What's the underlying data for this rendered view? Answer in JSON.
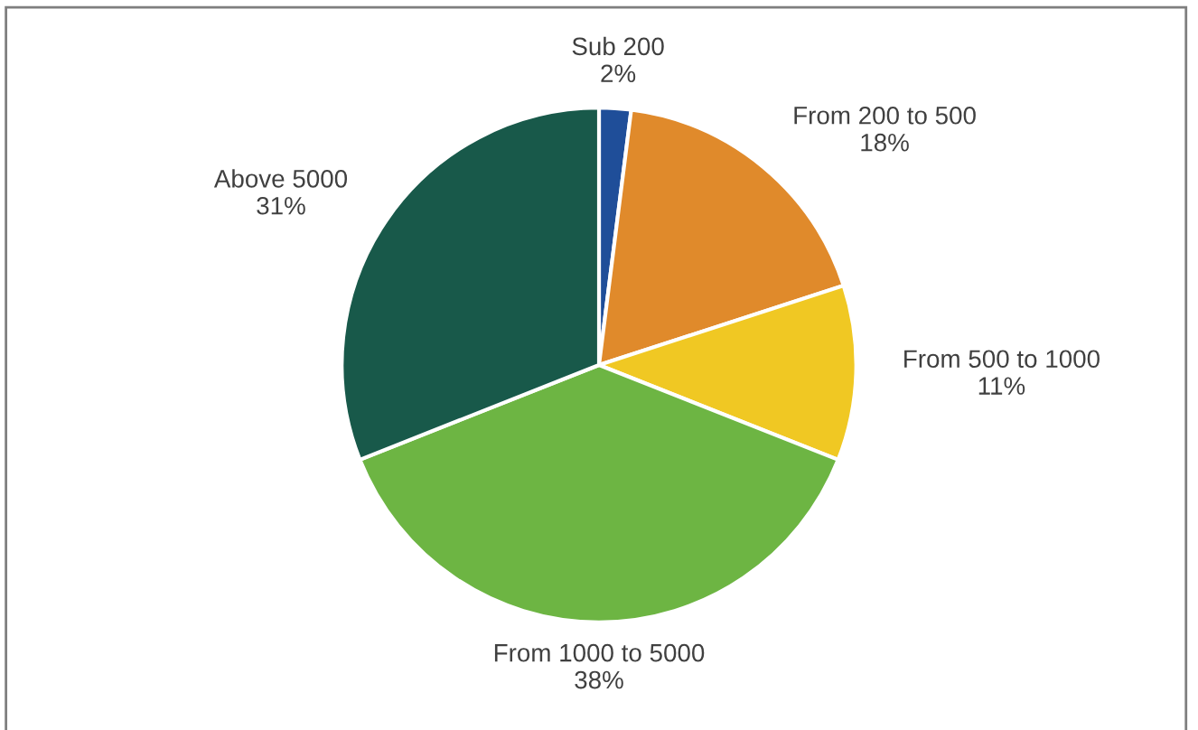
{
  "chart_data": {
    "type": "pie",
    "categories": [
      "Sub 200",
      "From 200 to 500",
      "From 500 to 1000",
      "From 1000 to 5000",
      "Above 5000"
    ],
    "values": [
      2,
      18,
      11,
      38,
      31
    ],
    "value_labels": [
      "2%",
      "18%",
      "11%",
      "38%",
      "31%"
    ],
    "colors": [
      "#1f4e99",
      "#e08a2b",
      "#f0c823",
      "#6db543",
      "#18594a"
    ],
    "legend": false
  }
}
